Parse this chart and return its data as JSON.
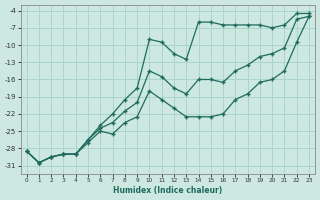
{
  "xlabel": "Humidex (Indice chaleur)",
  "ylabel": "",
  "bg_color": "#cce8e0",
  "line_color": "#1e6b5e",
  "grid_color": "#aad4cc",
  "xlim": [
    -0.5,
    23.5
  ],
  "ylim": [
    -32.5,
    -3.0
  ],
  "yticks": [
    -31,
    -28,
    -25,
    -22,
    -19,
    -16,
    -13,
    -10,
    -7,
    -4
  ],
  "xticks": [
    0,
    1,
    2,
    3,
    4,
    5,
    6,
    7,
    8,
    9,
    10,
    11,
    12,
    13,
    14,
    15,
    16,
    17,
    18,
    19,
    20,
    21,
    22,
    23
  ],
  "line_top_x": [
    0,
    1,
    2,
    3,
    4,
    5,
    6,
    7,
    8,
    9,
    10,
    11,
    12,
    13,
    14,
    15,
    16,
    17,
    18,
    19,
    20,
    21,
    22,
    23
  ],
  "line_top_y": [
    -28.5,
    -30.5,
    -29.5,
    -29.0,
    -29.0,
    -26.5,
    -24.0,
    -22.0,
    -19.5,
    -17.5,
    -9.0,
    -9.5,
    -11.5,
    -12.5,
    -6.0,
    -6.0,
    -6.5,
    -6.5,
    -6.5,
    -6.5,
    -7.0,
    -6.5,
    -4.5,
    -4.5
  ],
  "line_mid_x": [
    0,
    1,
    2,
    3,
    4,
    5,
    6,
    7,
    8,
    9,
    10,
    11,
    12,
    13,
    14,
    15,
    16,
    17,
    18,
    19,
    20,
    21,
    22,
    23
  ],
  "line_mid_y": [
    -28.5,
    -30.5,
    -29.5,
    -29.0,
    -29.0,
    -26.5,
    -24.5,
    -23.5,
    -21.5,
    -20.0,
    -14.5,
    -15.5,
    -17.5,
    -18.5,
    -16.0,
    -16.0,
    -16.5,
    -14.5,
    -13.5,
    -12.0,
    -11.5,
    -10.5,
    -5.5,
    -5.0
  ],
  "line_bot_x": [
    0,
    1,
    2,
    3,
    4,
    5,
    6,
    7,
    8,
    9,
    10,
    11,
    12,
    13,
    14,
    15,
    16,
    17,
    18,
    19,
    20,
    21,
    22,
    23
  ],
  "line_bot_y": [
    -28.5,
    -30.5,
    -29.5,
    -29.0,
    -29.0,
    -27.0,
    -25.0,
    -25.5,
    -23.5,
    -22.5,
    -18.0,
    -19.5,
    -21.0,
    -22.5,
    -22.5,
    -22.5,
    -22.0,
    -19.5,
    -18.5,
    -16.5,
    -16.0,
    -14.5,
    -9.5,
    -5.0
  ]
}
